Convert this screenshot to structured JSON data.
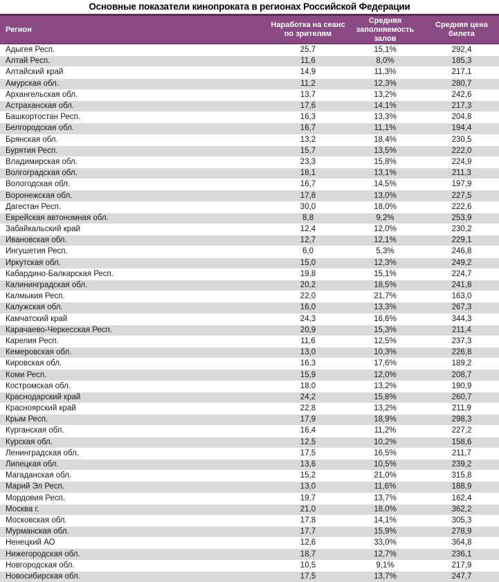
{
  "title": "Основные показатели кинопроката в регионах Российской Федерации",
  "colors": {
    "header_bg": "#8A4A84",
    "header_border": "#5E2C58",
    "header_text": "#FFFFFF",
    "row_bg": "#FFFFFF",
    "row_alt_bg": "#D9D9D9",
    "text": "#1A1A1A"
  },
  "table": {
    "columns": [
      "Регион",
      "Наработка на сеанс по зрителям",
      "Средняя заполняемость залов",
      "Средняя цена билета"
    ],
    "rows": [
      [
        "Адыгея Респ.",
        "25,7",
        "15,1%",
        "292,4"
      ],
      [
        "Алтай Респ.",
        "11,6",
        "8,0%",
        "185,3"
      ],
      [
        "Алтайский край",
        "14,9",
        "11,3%",
        "217,1"
      ],
      [
        "Амурская обл.",
        "11,2",
        "12,3%",
        "280,7"
      ],
      [
        "Архангельская обл.",
        "13,7",
        "13,2%",
        "242,6"
      ],
      [
        "Астраханская обл.",
        "17,6",
        "14,1%",
        "217,3"
      ],
      [
        "Башкортостан Респ.",
        "16,3",
        "13,3%",
        "204,8"
      ],
      [
        "Белгородская обл.",
        "16,7",
        "11,1%",
        "194,4"
      ],
      [
        "Брянская обл.",
        "13,2",
        "18,4%",
        "230,5"
      ],
      [
        "Бурятия Респ.",
        "15,7",
        "13,5%",
        "222,0"
      ],
      [
        "Владимирская обл.",
        "23,3",
        "15,8%",
        "224,9"
      ],
      [
        "Волгоградская обл.",
        "18,1",
        "13,1%",
        "211,3"
      ],
      [
        "Вологодская обл.",
        "16,7",
        "14,5%",
        "197,9"
      ],
      [
        "Воронежская обл.",
        "17,8",
        "13,0%",
        "227,5"
      ],
      [
        "Дагестан Респ.",
        "30,0",
        "18,0%",
        "222,6"
      ],
      [
        "Еврейская автономная обл.",
        "8,8",
        "9,2%",
        "253,9"
      ],
      [
        "Забайкальский край",
        "12,4",
        "12,0%",
        "230,2"
      ],
      [
        "Ивановская обл.",
        "12,7",
        "12,1%",
        "229,1"
      ],
      [
        "Ингушетия Респ.",
        "6,0",
        "5,3%",
        "246,8"
      ],
      [
        "Иркутская обл.",
        "15,0",
        "12,3%",
        "249,2"
      ],
      [
        "Кабардино-Балкарская Респ.",
        "19,8",
        "15,1%",
        "224,7"
      ],
      [
        "Калининградская обл.",
        "20,2",
        "18,5%",
        "241,8"
      ],
      [
        "Калмыкия Респ.",
        "22,0",
        "21,7%",
        "163,0"
      ],
      [
        "Калужская обл.",
        "16,0",
        "13,3%",
        "267,3"
      ],
      [
        "Камчатский край",
        "24,3",
        "16,6%",
        "344,3"
      ],
      [
        "Карачаево-Черкесская Респ.",
        "20,9",
        "15,3%",
        "211,4"
      ],
      [
        "Карелия Респ.",
        "11,6",
        "12,5%",
        "237,3"
      ],
      [
        "Кемеровская обл.",
        "13,0",
        "10,3%",
        "226,8"
      ],
      [
        "Кировская обл.",
        "16,3",
        "17,6%",
        "189,2"
      ],
      [
        "Коми Респ.",
        "15,9",
        "12,0%",
        "208,7"
      ],
      [
        "Костромская обл.",
        "18,0",
        "13,2%",
        "190,9"
      ],
      [
        "Краснодарский край",
        "24,2",
        "15,8%",
        "260,7"
      ],
      [
        "Красноярский край",
        "22,8",
        "13,2%",
        "211,9"
      ],
      [
        "Крым Респ.",
        "17,9",
        "18,9%",
        "298,3"
      ],
      [
        "Курганская обл.",
        "16,4",
        "11,2%",
        "227,2"
      ],
      [
        "Курская обл.",
        "12,5",
        "10,2%",
        "158,6"
      ],
      [
        "Ленинградская обл.",
        "17,5",
        "16,5%",
        "211,7"
      ],
      [
        "Липецкая обл.",
        "13,6",
        "10,5%",
        "239,2"
      ],
      [
        "Магаданская обл.",
        "15,2",
        "21,0%",
        "315,8"
      ],
      [
        "Марий Эл Респ.",
        "13,0",
        "11,6%",
        "188,9"
      ],
      [
        "Мордовия Респ.",
        "19,7",
        "13,7%",
        "162,4"
      ],
      [
        "Москва г.",
        "21,0",
        "18,0%",
        "362,2"
      ],
      [
        "Московская обл.",
        "17,8",
        "14,1%",
        "305,3"
      ],
      [
        "Мурманская обл.",
        "17,7",
        "15,9%",
        "278,9"
      ],
      [
        "Ненецкий АО",
        "12,6",
        "33,0%",
        "364,8"
      ],
      [
        "Нижегородская обл.",
        "18,7",
        "12,7%",
        "236,1"
      ],
      [
        "Новгородская обл.",
        "10,5",
        "9,1%",
        "217,9"
      ],
      [
        "Новосибирская обл.",
        "17,5",
        "13,7%",
        "247,7"
      ]
    ]
  }
}
